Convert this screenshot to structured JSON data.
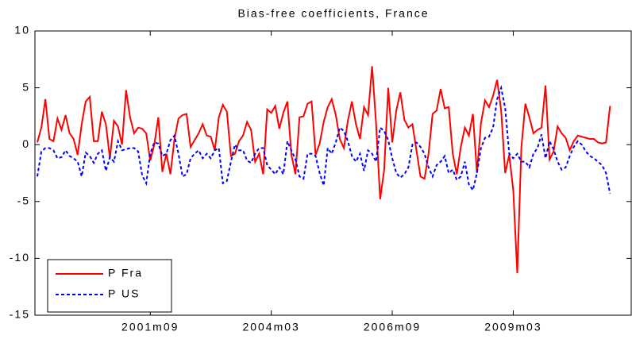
{
  "chart_data": {
    "type": "line",
    "title": "Bias-free coefficients, France",
    "categories": [
      null,
      null,
      null,
      null,
      null,
      null,
      null,
      null,
      null,
      null,
      null,
      null,
      null,
      null,
      null,
      null,
      null,
      null,
      null,
      null,
      null,
      null,
      null,
      null,
      null,
      null,
      null,
      null,
      "2001m09",
      null,
      null,
      null,
      null,
      null,
      null,
      null,
      null,
      null,
      null,
      null,
      null,
      null,
      null,
      null,
      null,
      null,
      null,
      null,
      null,
      null,
      null,
      null,
      null,
      null,
      null,
      null,
      null,
      null,
      "2004m03",
      null,
      null,
      null,
      null,
      null,
      null,
      null,
      null,
      null,
      null,
      null,
      null,
      null,
      null,
      null,
      null,
      null,
      null,
      null,
      null,
      null,
      null,
      null,
      null,
      null,
      null,
      null,
      null,
      null,
      "2006m09",
      null,
      null,
      null,
      null,
      null,
      null,
      null,
      null,
      null,
      null,
      null,
      null,
      null,
      null,
      null,
      null,
      null,
      null,
      null,
      null,
      null,
      null,
      null,
      null,
      null,
      null,
      null,
      null,
      null,
      "2009m03",
      null,
      null,
      null,
      null,
      null,
      null,
      null,
      null,
      null,
      null,
      null,
      null,
      null,
      null,
      null,
      null,
      null,
      null,
      null,
      null,
      null,
      null,
      null,
      null
    ],
    "series": [
      {
        "name": "P Fra",
        "color": "#ff0000",
        "dash": false,
        "values": [
          0.2,
          1.5,
          4.0,
          0.5,
          0.3,
          2.3,
          1.3,
          2.6,
          1.0,
          0.5,
          -0.9,
          1.8,
          3.8,
          4.2,
          0.3,
          0.3,
          2.9,
          1.8,
          -1.2,
          2.1,
          1.6,
          0.0,
          4.8,
          2.4,
          1.0,
          1.5,
          1.4,
          1.0,
          -1.4,
          0.0,
          2.4,
          -2.4,
          -0.8,
          -2.6,
          0.5,
          2.3,
          2.6,
          2.7,
          -0.2,
          0.4,
          1.0,
          1.8,
          0.8,
          0.7,
          -0.5,
          2.4,
          3.5,
          2.9,
          -1.0,
          -0.8,
          0.3,
          0.8,
          2.0,
          1.3,
          -1.5,
          -0.8,
          -2.6,
          3.1,
          2.8,
          3.4,
          1.4,
          2.8,
          3.8,
          -0.9,
          -2.6,
          2.4,
          2.5,
          3.6,
          3.8,
          -0.9,
          0.1,
          2.0,
          3.3,
          4.0,
          2.6,
          0.5,
          -0.3,
          2.1,
          3.8,
          1.8,
          0.5,
          3.3,
          2.6,
          6.9,
          1.8,
          -4.8,
          -2.2,
          5.0,
          0.2,
          3.0,
          4.6,
          2.2,
          1.5,
          1.8,
          -0.5,
          -2.8,
          -3.0,
          -0.8,
          2.7,
          3.0,
          4.9,
          3.2,
          3.3,
          -0.8,
          -2.6,
          -0.2,
          1.5,
          0.8,
          2.7,
          -2.5,
          1.9,
          3.9,
          3.3,
          4.3,
          5.7,
          3.0,
          -2.5,
          -0.9,
          -4.0,
          -11.3,
          -0.3,
          3.6,
          2.4,
          1.0,
          1.3,
          1.5,
          5.2,
          -1.3,
          -0.6,
          1.6,
          1.0,
          0.6,
          -0.5,
          0.3,
          0.8,
          0.7,
          0.6,
          0.5,
          0.5,
          0.2,
          0.1,
          0.2,
          3.4
        ]
      },
      {
        "name": "P US",
        "color": "#0000ff",
        "dash": true,
        "values": [
          -2.8,
          -0.6,
          -0.3,
          -0.3,
          -0.5,
          -1.2,
          -1.1,
          -0.5,
          -1.0,
          -1.2,
          -1.5,
          -2.8,
          -0.7,
          -1.0,
          -1.6,
          -0.8,
          -0.5,
          -2.3,
          -1.1,
          -1.5,
          0.3,
          -0.5,
          -0.4,
          -0.3,
          -0.3,
          -0.6,
          -2.7,
          -3.4,
          -0.8,
          0.2,
          0.1,
          -1.0,
          -0.8,
          0.4,
          0.8,
          -0.8,
          -2.8,
          -2.6,
          -1.2,
          -0.8,
          -0.5,
          -1.2,
          -0.8,
          -1.2,
          -0.5,
          -0.3,
          -3.4,
          -3.2,
          -1.5,
          0.0,
          -0.5,
          -0.5,
          -1.4,
          -1.6,
          -0.8,
          -0.3,
          -0.3,
          -1.8,
          -2.2,
          -2.6,
          -2.0,
          -2.6,
          0.3,
          -0.5,
          -1.3,
          -2.8,
          -3.0,
          -0.8,
          -0.8,
          -1.0,
          -2.5,
          -3.6,
          -0.3,
          -0.8,
          0.2,
          1.5,
          1.2,
          0.3,
          -1.0,
          -1.5,
          -0.8,
          -2.3,
          -0.5,
          -0.8,
          -1.5,
          1.5,
          1.2,
          0.4,
          -1.2,
          -2.5,
          -2.9,
          -2.6,
          -2.0,
          0.0,
          0.2,
          -0.2,
          -0.8,
          -2.0,
          -2.8,
          -1.8,
          -1.5,
          -1.0,
          -2.5,
          -2.2,
          -3.1,
          -2.8,
          -1.5,
          -3.5,
          -4.0,
          -2.5,
          -0.3,
          0.6,
          0.7,
          1.5,
          4.0,
          5.0,
          3.2,
          -0.8,
          -1.2,
          -0.8,
          -1.5,
          -1.5,
          -2.0,
          -0.8,
          -0.3,
          0.9,
          -1.2,
          0.3,
          -0.4,
          -1.5,
          -2.2,
          -2.0,
          -1.0,
          -0.2,
          0.3,
          0.0,
          -0.6,
          -1.0,
          -1.2,
          -1.5,
          -1.8,
          -2.5,
          -4.3
        ]
      }
    ],
    "ylim": [
      -15,
      10
    ],
    "yticks": [
      10,
      5,
      0,
      -5,
      -10,
      -15
    ],
    "grid": false,
    "legend": "lower-left"
  }
}
